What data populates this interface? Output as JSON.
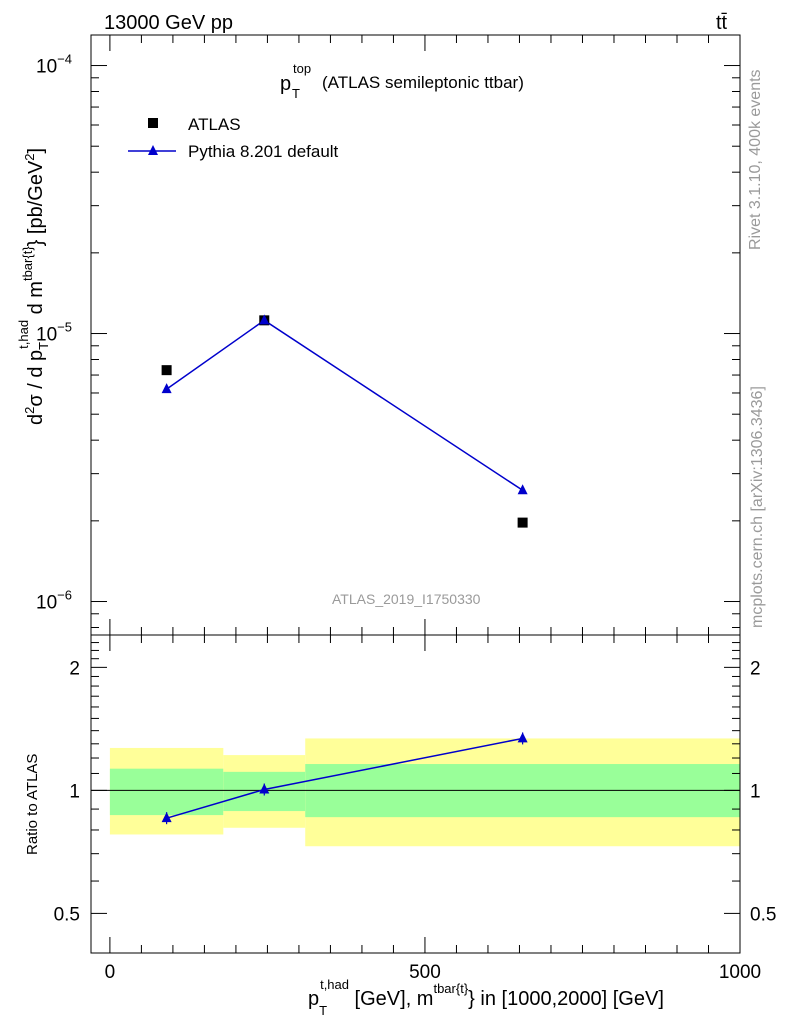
{
  "header": {
    "energy_label": "13000 GeV pp",
    "process_label": "tt̄"
  },
  "plot": {
    "title_main": "p",
    "title_sub": "T",
    "title_sup": "top",
    "title_rest": "(ATLAS semileptonic ttbar)",
    "analysis_id": "ATLAS_2019_I1750330",
    "side_label_top": "Rivet 3.1.10,  400k events",
    "side_label_bottom": "mcplots.cern.ch [arXiv:1306.3436]"
  },
  "chart_data": [
    {
      "type": "scatter",
      "panel": "main",
      "ylabel": "d²σ / d p_T^{t,had} d m^{tbar{t}} [pb/GeV²]",
      "yscale": "log",
      "ylim": [
        7.5e-07,
        0.00013
      ],
      "xlim": [
        -30,
        1000
      ],
      "y_tick_labels": [
        "10^-6",
        "10^-5",
        "10^-4"
      ],
      "legend": {
        "position": "top-left",
        "entries": [
          "ATLAS",
          "Pythia 8.201 default"
        ]
      },
      "series": [
        {
          "name": "ATLAS",
          "marker": "square",
          "color": "#000000",
          "x": [
            90,
            245,
            655
          ],
          "y": [
            7.3e-06,
            1.12e-05,
            1.97e-06
          ]
        },
        {
          "name": "Pythia 8.201 default",
          "marker": "triangle",
          "color": "#0000cc",
          "x": [
            90,
            245,
            655
          ],
          "y": [
            6.2e-06,
            1.12e-05,
            2.6e-06
          ]
        }
      ]
    },
    {
      "type": "line",
      "panel": "ratio",
      "ylabel": "Ratio to ATLAS",
      "xlabel": "p_T^{t,had} [GeV], m^{tbar{t}} in [1000,2000] [GeV]",
      "yscale": "log",
      "ylim": [
        0.4,
        2.4
      ],
      "xlim": [
        -30,
        1000
      ],
      "x_ticks": [
        0,
        500,
        1000
      ],
      "y_ticks": [
        0.5,
        1,
        2
      ],
      "bins": [
        {
          "x_low": 0,
          "x_high": 180,
          "green_low": 0.87,
          "green_high": 1.13,
          "yellow_low": 0.78,
          "yellow_high": 1.27
        },
        {
          "x_low": 180,
          "x_high": 310,
          "green_low": 0.89,
          "green_high": 1.11,
          "yellow_low": 0.81,
          "yellow_high": 1.22
        },
        {
          "x_low": 310,
          "x_high": 1000,
          "green_low": 0.86,
          "green_high": 1.16,
          "yellow_low": 0.73,
          "yellow_high": 1.34
        }
      ],
      "series": [
        {
          "name": "Pythia 8.201 default",
          "color": "#0000cc",
          "x": [
            90,
            245,
            655
          ],
          "y": [
            0.855,
            1.005,
            1.34
          ]
        }
      ]
    }
  ],
  "colors": {
    "pythia": "#0000cc",
    "atlas": "#000000",
    "band_green": "#99ff99",
    "band_yellow": "#ffff99"
  }
}
